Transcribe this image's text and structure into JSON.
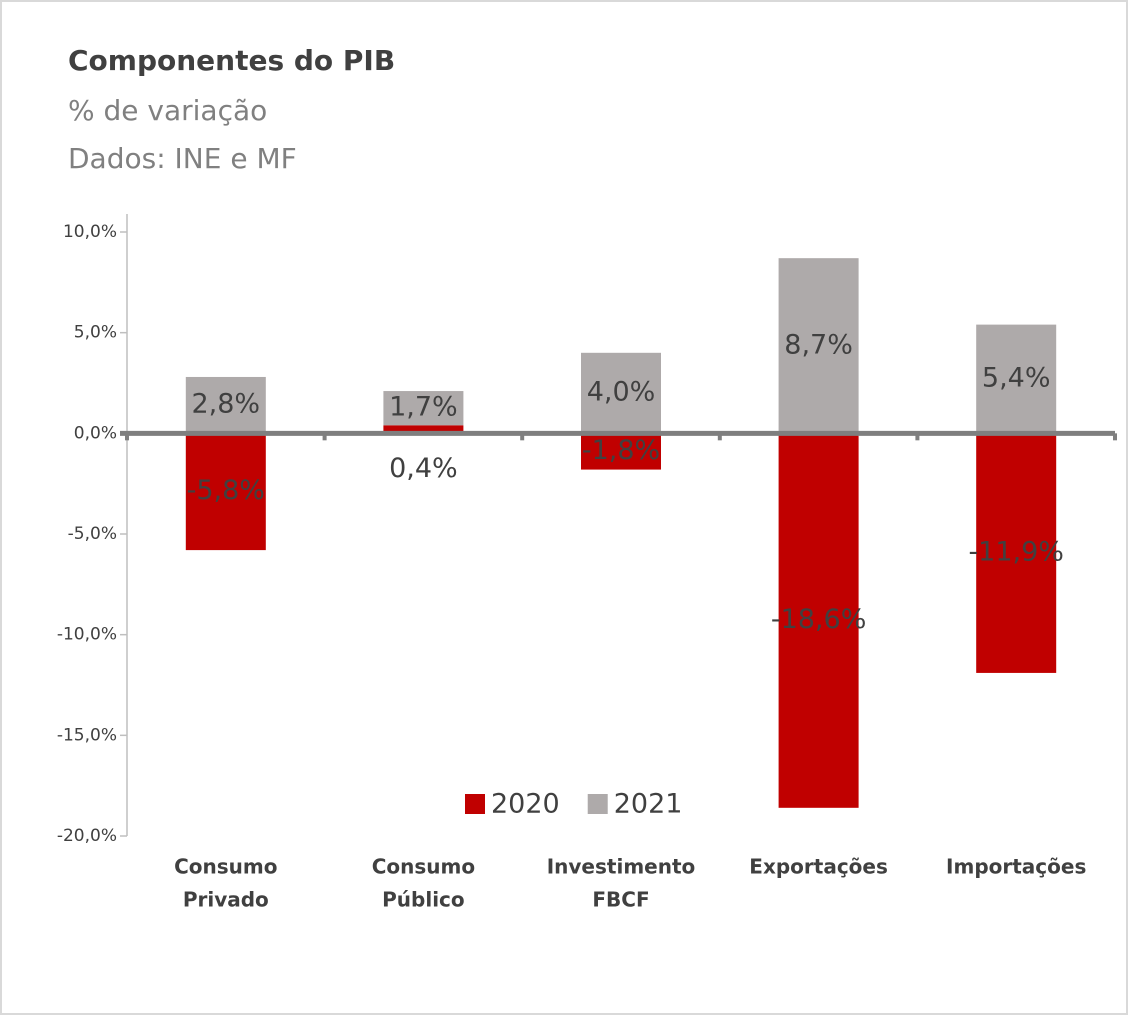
{
  "chart_data": {
    "type": "bar",
    "stacked": true,
    "title": "Componentes do PIB",
    "subtitle": "% de variação",
    "source": "Dados: INE e MF",
    "categories": [
      [
        "Consumo",
        "Privado"
      ],
      [
        "Consumo",
        "Público"
      ],
      [
        "Investimento",
        "FBCF"
      ],
      [
        "Exportações"
      ],
      [
        "Importações"
      ]
    ],
    "series": [
      {
        "name": "2020",
        "color": "#c00000",
        "values": [
          -5.8,
          0.4,
          -1.8,
          -18.6,
          -11.9
        ],
        "value_labels": [
          "-5,8%",
          "0,4%",
          "-1,8%",
          "-18,6%",
          "-11,9%"
        ]
      },
      {
        "name": "2021",
        "color": "#aeaaaa",
        "values": [
          2.8,
          1.7,
          4.0,
          8.7,
          5.4
        ],
        "value_labels": [
          "2,8%",
          "1,7%",
          "4,0%",
          "8,7%",
          "5,4%"
        ]
      }
    ],
    "ylim": [
      -20,
      10
    ],
    "yticks": [
      {
        "value": -20,
        "label": "-20,0%"
      },
      {
        "value": -15,
        "label": "-15,0%"
      },
      {
        "value": -10,
        "label": "-10,0%"
      },
      {
        "value": -5,
        "label": "-5,0%"
      },
      {
        "value": 0,
        "label": "0,0%"
      },
      {
        "value": 5,
        "label": "5,0%"
      },
      {
        "value": 10,
        "label": "10,0%"
      }
    ],
    "legend": "bottom"
  }
}
